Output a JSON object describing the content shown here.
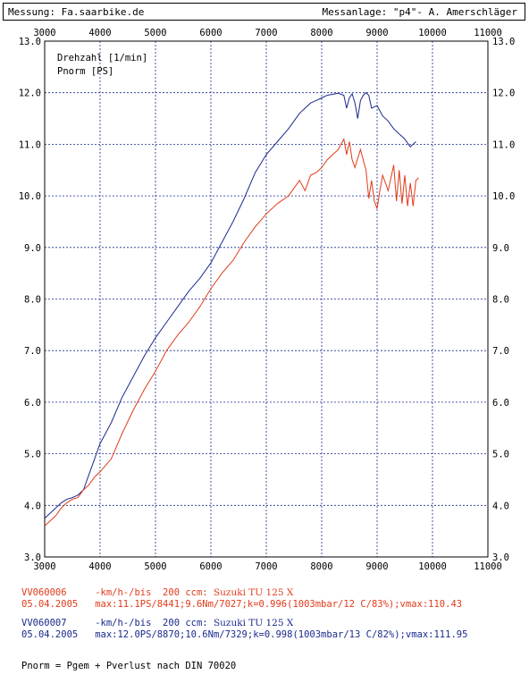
{
  "header": {
    "left": "Messung: Fa.saarbike.de",
    "right": "Messanlage: \"p4\"- A. Amerschläger"
  },
  "chart_data": {
    "type": "line",
    "xlim": [
      3000,
      11000
    ],
    "ylim": [
      3.0,
      13.0
    ],
    "x_ticks": [
      3000,
      4000,
      5000,
      6000,
      7000,
      8000,
      9000,
      10000,
      11000
    ],
    "x_tick_labels": [
      "3000",
      "4000",
      "5000",
      "6000",
      "7000",
      "8000",
      "9000",
      "10000",
      "11000"
    ],
    "y_ticks": [
      3,
      4,
      5,
      6,
      7,
      8,
      9,
      10,
      11,
      12,
      13
    ],
    "y_tick_labels": [
      "3.0",
      "4.0",
      "5.0",
      "6.0",
      "7.0",
      "8.0",
      "9.0",
      "10.0",
      "11.0",
      "12.0",
      "13.0"
    ],
    "grid": true,
    "legend": [
      "Drehzahl [1/min]",
      "Pnorm [PS]"
    ],
    "series": [
      {
        "color": "#1a2a8c",
        "x": [
          3000,
          3100,
          3200,
          3300,
          3400,
          3500,
          3600,
          3700,
          3800,
          3900,
          4000,
          4200,
          4400,
          4600,
          4800,
          5000,
          5200,
          5400,
          5600,
          5800,
          6000,
          6200,
          6400,
          6600,
          6800,
          7000,
          7200,
          7400,
          7600,
          7800,
          7900,
          8000,
          8100,
          8200,
          8300,
          8400,
          8450,
          8500,
          8550,
          8600,
          8650,
          8700,
          8750,
          8800,
          8850,
          8900,
          9000,
          9100,
          9200,
          9300,
          9400,
          9500,
          9600,
          9700
        ],
        "y": [
          3.75,
          3.85,
          3.95,
          4.05,
          4.12,
          4.15,
          4.2,
          4.3,
          4.6,
          4.9,
          5.2,
          5.6,
          6.1,
          6.5,
          6.9,
          7.25,
          7.55,
          7.85,
          8.15,
          8.4,
          8.7,
          9.1,
          9.5,
          9.95,
          10.45,
          10.8,
          11.05,
          11.3,
          11.6,
          11.8,
          11.85,
          11.9,
          11.95,
          11.97,
          11.99,
          11.95,
          11.7,
          11.9,
          11.98,
          11.8,
          11.5,
          11.85,
          11.95,
          12.0,
          11.95,
          11.7,
          11.75,
          11.55,
          11.45,
          11.3,
          11.2,
          11.1,
          10.95,
          11.05
        ]
      },
      {
        "color": "#e03b1a",
        "x": [
          3000,
          3100,
          3200,
          3300,
          3400,
          3500,
          3600,
          3700,
          3800,
          3900,
          4000,
          4200,
          4400,
          4600,
          4800,
          5000,
          5200,
          5400,
          5600,
          5800,
          6000,
          6200,
          6400,
          6600,
          6800,
          7000,
          7200,
          7400,
          7600,
          7700,
          7800,
          7900,
          8000,
          8100,
          8200,
          8300,
          8400,
          8450,
          8500,
          8550,
          8600,
          8700,
          8800,
          8850,
          8900,
          8950,
          9000,
          9050,
          9100,
          9200,
          9300,
          9350,
          9400,
          9450,
          9500,
          9550,
          9600,
          9650,
          9700,
          9750
        ],
        "y": [
          3.6,
          3.7,
          3.8,
          3.95,
          4.05,
          4.12,
          4.15,
          4.3,
          4.4,
          4.55,
          4.65,
          4.9,
          5.4,
          5.85,
          6.25,
          6.6,
          7.0,
          7.3,
          7.55,
          7.85,
          8.2,
          8.5,
          8.75,
          9.1,
          9.4,
          9.65,
          9.85,
          10.0,
          10.3,
          10.1,
          10.4,
          10.45,
          10.55,
          10.7,
          10.8,
          10.9,
          11.1,
          10.8,
          11.05,
          10.7,
          10.55,
          10.9,
          10.5,
          9.95,
          10.3,
          9.9,
          9.75,
          10.1,
          10.4,
          10.1,
          10.6,
          9.9,
          10.5,
          9.85,
          10.4,
          9.8,
          10.25,
          9.8,
          10.3,
          10.35
        ]
      }
    ]
  },
  "footer": {
    "line1_id": "VV060006",
    "line1_mid": "-km/h-/bis  200 ccm:",
    "line1_model": "Suzuki TU 125 X",
    "line2_date": "05.04.2005",
    "line2_max": "max:11.1PS/8441;9.6Nm/7027;k=0.996(1003mbar/12 C/83%);vmax:110.43",
    "line3_id": "VV060007",
    "line3_mid": "-km/h-/bis  200 ccm:",
    "line3_model": "Suzuki TU 125 X",
    "line4_date": "05.04.2005",
    "line4_max": "max:12.0PS/8870;10.6Nm/7329;k=0.998(1003mbar/13 C/82%);vmax:111.95",
    "note": "Pnorm = Pgem + Pverlust nach DIN 70020"
  }
}
